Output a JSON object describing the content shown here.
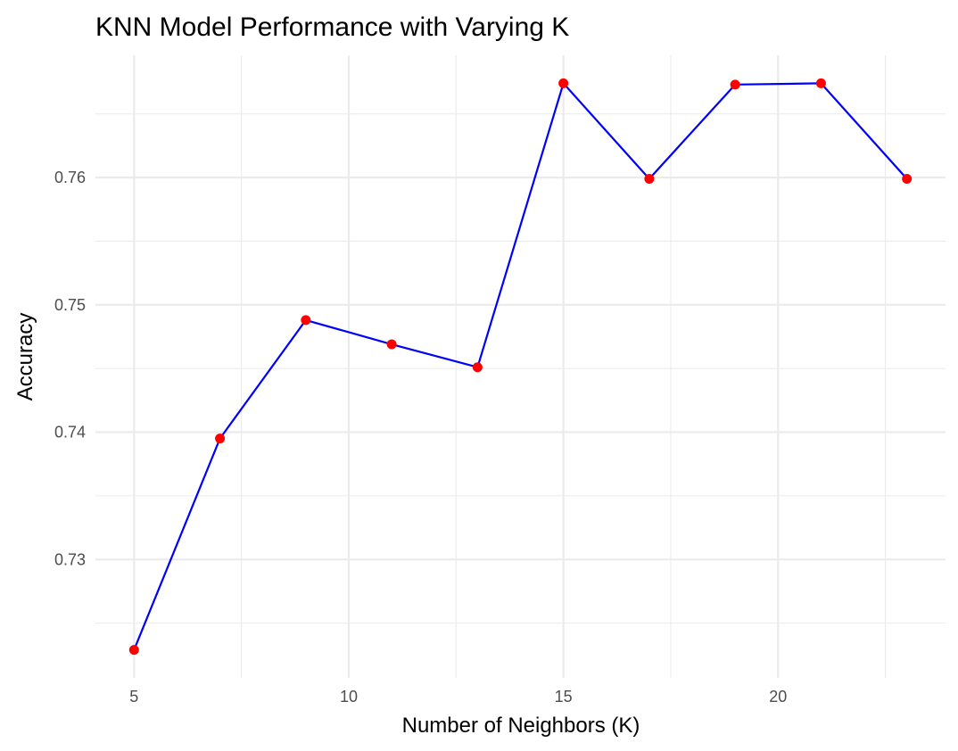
{
  "chart_data": {
    "type": "line",
    "title": "KNN Model Performance with Varying K",
    "xlabel": "Number of Neighbors (K)",
    "ylabel": "Accuracy",
    "x": [
      5,
      7,
      9,
      11,
      13,
      15,
      17,
      19,
      21,
      23
    ],
    "series": [
      {
        "values": [
          0.7229,
          0.7395,
          0.7488,
          0.7469,
          0.7451,
          0.7674,
          0.7599,
          0.7673,
          0.7674,
          0.7599
        ]
      }
    ],
    "x_ticks": [
      5,
      10,
      15,
      20
    ],
    "x_tick_labels": [
      "5",
      "10",
      "15",
      "20"
    ],
    "y_ticks": [
      0.73,
      0.74,
      0.75,
      0.76
    ],
    "y_tick_labels": [
      "0.73",
      "0.74",
      "0.75",
      "0.76"
    ],
    "xlim": [
      4.1,
      23.9
    ],
    "ylim": [
      0.7207,
      0.7696
    ],
    "grid": true,
    "line_color": "#0000ff",
    "point_color": "#ff0000"
  }
}
